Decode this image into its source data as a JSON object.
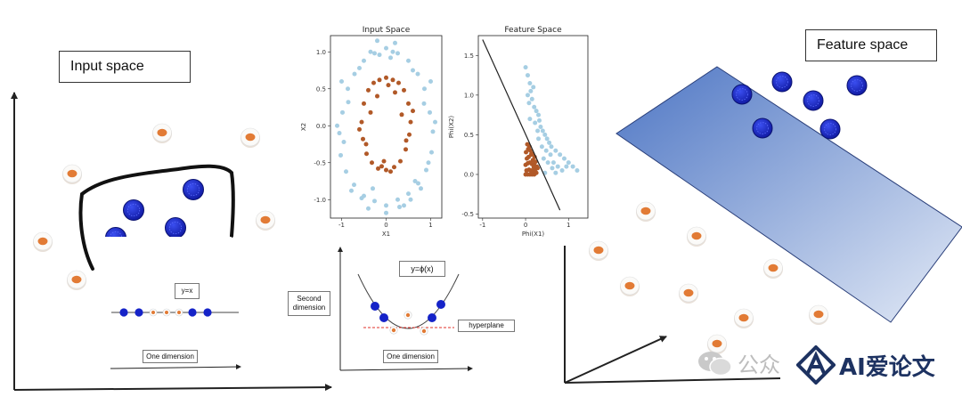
{
  "left_panel": {
    "title": "Input space",
    "line_label": "y=x",
    "axis_label": "One dimension"
  },
  "middle_diagram": {
    "second_dimension": "Second\ndimension",
    "curve_label": "y=ϕ(x)",
    "hyperplane_label": "hyperplane",
    "axis_label": "One dimension"
  },
  "right_panel": {
    "title": "Feature space"
  },
  "colors": {
    "blue": "#1523c8",
    "orange": "#e27b35",
    "light_blue": "#a6cee3",
    "brown": "#b15928",
    "plane_top": "#4e76c4",
    "plane_bottom": "#e3eaf6"
  },
  "watermark": {
    "icon": "wechat-icon",
    "text": "公众",
    "logo": "ai-logo-icon",
    "brand": "AI爱论文"
  },
  "chart_data": [
    {
      "type": "scatter",
      "title": "Input Space",
      "xlabel": "X1",
      "ylabel": "X2",
      "xticks": [
        "-1",
        "0",
        "1"
      ],
      "yticks": [
        "-1.0",
        "-0.5",
        "0.0",
        "0.5",
        "1.0"
      ],
      "xlim": [
        -1.25,
        1.25
      ],
      "ylim": [
        -1.25,
        1.22
      ],
      "series": [
        {
          "color": "#a6cee3",
          "x": [
            0.98,
            0.86,
            0.71,
            0.5,
            0.26,
            0.0,
            -0.26,
            -0.5,
            -0.71,
            -0.86,
            -0.98,
            -1.05,
            -1.02,
            -0.9,
            -0.72,
            -0.5,
            -0.26,
            0.0,
            0.26,
            0.5,
            0.72,
            0.9,
            1.02,
            1.05,
            0.2,
            -0.2,
            0.1,
            -0.35,
            0.6,
            -0.6,
            0.85,
            -0.85,
            1.1,
            -1.1,
            0.4,
            -0.4,
            0.0,
            0.78,
            -0.78,
            0.55,
            -0.55,
            0.95,
            -0.95,
            0.15,
            -0.15,
            0.3,
            -0.3,
            1.0,
            -1.0,
            0.65
          ],
          "y": [
            0.18,
            0.5,
            0.7,
            0.88,
            0.98,
            1.05,
            0.98,
            0.88,
            0.7,
            0.5,
            0.18,
            -0.1,
            -0.4,
            -0.62,
            -0.8,
            -0.95,
            -1.02,
            -1.08,
            -1.0,
            -0.92,
            -0.78,
            -0.6,
            -0.36,
            -0.08,
            1.12,
            1.15,
            0.92,
            1.0,
            0.75,
            0.78,
            0.3,
            0.32,
            0.05,
            0.0,
            -1.08,
            -1.12,
            -1.18,
            -0.85,
            -0.88,
            -1.0,
            -0.98,
            -0.5,
            -0.22,
            1.0,
            0.96,
            -1.1,
            -0.85,
            0.6,
            0.6,
            -0.75
          ]
        },
        {
          "color": "#b15928",
          "x": [
            0.55,
            0.5,
            0.4,
            0.28,
            0.15,
            0.0,
            -0.15,
            -0.28,
            -0.4,
            -0.5,
            -0.55,
            -0.52,
            -0.44,
            -0.32,
            -0.18,
            0.0,
            0.18,
            0.32,
            0.44,
            0.52,
            0.05,
            -0.05,
            0.35,
            -0.35,
            0.45,
            -0.45,
            0.2,
            -0.2,
            0.1,
            -0.1,
            0.6,
            -0.6
          ],
          "y": [
            0.05,
            0.3,
            0.48,
            0.58,
            0.62,
            0.65,
            0.62,
            0.58,
            0.48,
            0.3,
            0.05,
            -0.18,
            -0.38,
            -0.5,
            -0.58,
            -0.6,
            -0.56,
            -0.48,
            -0.32,
            -0.12,
            0.55,
            -0.48,
            0.15,
            0.18,
            -0.2,
            -0.25,
            0.45,
            0.4,
            -0.62,
            -0.55,
            0.2,
            -0.05
          ]
        }
      ]
    },
    {
      "type": "scatter",
      "title": "Feature Space",
      "xlabel": "Phi(X1)",
      "ylabel": "Phi(X2)",
      "xticks": [
        "-1",
        "0",
        "1"
      ],
      "yticks": [
        "-0.5",
        "0.0",
        "0.5",
        "1.0",
        "1.5"
      ],
      "xlim": [
        -1.1,
        1.45
      ],
      "ylim": [
        -0.55,
        1.75
      ],
      "separator": {
        "x": [
          -1.0,
          0.8
        ],
        "y": [
          1.7,
          -0.45
        ]
      },
      "series": [
        {
          "color": "#a6cee3",
          "x": [
            0.0,
            0.05,
            0.1,
            0.12,
            0.15,
            0.08,
            0.2,
            0.25,
            0.3,
            0.1,
            0.05,
            0.18,
            0.22,
            0.35,
            0.4,
            0.45,
            0.5,
            0.55,
            0.6,
            0.7,
            0.8,
            0.9,
            1.0,
            1.1,
            1.2,
            0.3,
            0.38,
            0.48,
            0.58,
            0.65,
            0.75,
            0.85,
            0.95,
            0.42,
            0.52,
            0.62,
            0.28,
            0.32,
            0.7,
            0.45
          ],
          "y": [
            1.35,
            1.25,
            1.15,
            1.05,
            0.95,
            0.9,
            0.85,
            0.8,
            0.75,
            0.7,
            1.0,
            1.1,
            0.65,
            0.6,
            0.55,
            0.5,
            0.45,
            0.4,
            0.35,
            0.3,
            0.25,
            0.2,
            0.15,
            0.1,
            0.05,
            0.45,
            0.35,
            0.3,
            0.25,
            0.15,
            0.1,
            0.05,
            0.1,
            0.2,
            0.15,
            0.08,
            0.55,
            0.68,
            0.02,
            0.02
          ]
        },
        {
          "color": "#b15928",
          "x": [
            0.0,
            0.05,
            0.1,
            0.15,
            0.2,
            0.25,
            0.02,
            0.08,
            0.12,
            0.18,
            0.22,
            0.28,
            0.0,
            0.05,
            0.1,
            0.15,
            0.2,
            0.03,
            0.07,
            0.13,
            0.17,
            0.23,
            0.01,
            0.06,
            0.11,
            0.16,
            0.21,
            0.26,
            0.04,
            0.09,
            0.14,
            0.19
          ],
          "y": [
            0.0,
            0.0,
            0.0,
            0.0,
            0.0,
            0.02,
            0.05,
            0.06,
            0.05,
            0.04,
            0.06,
            0.08,
            0.12,
            0.14,
            0.15,
            0.13,
            0.12,
            0.2,
            0.22,
            0.25,
            0.18,
            0.16,
            0.28,
            0.32,
            0.3,
            0.26,
            0.22,
            0.1,
            0.38,
            0.35,
            0.02,
            0.09
          ]
        }
      ]
    }
  ]
}
